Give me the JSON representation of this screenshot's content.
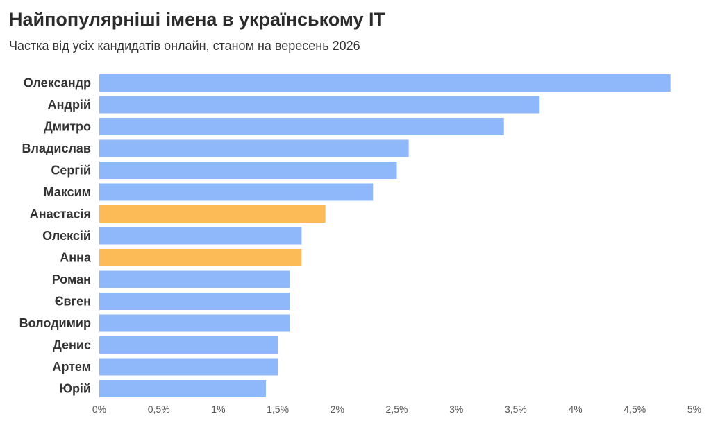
{
  "chart_data": {
    "type": "bar",
    "orientation": "horizontal",
    "title": "Найпопулярніші імена в українському IT",
    "subtitle": "Частка від усіх кандидатів онлайн, станом на вересень 2026",
    "xlabel": "",
    "ylabel": "",
    "categories": [
      "Олександр",
      "Андрій",
      "Дмитро",
      "Владислав",
      "Сергій",
      "Максим",
      "Анастасія",
      "Олексій",
      "Анна",
      "Роман",
      "Євген",
      "Володимир",
      "Денис",
      "Артем",
      "Юрій"
    ],
    "values": [
      4.8,
      3.7,
      3.4,
      2.6,
      2.5,
      2.3,
      1.9,
      1.7,
      1.7,
      1.6,
      1.6,
      1.6,
      1.5,
      1.5,
      1.4
    ],
    "highlight": [
      false,
      false,
      false,
      false,
      false,
      false,
      true,
      false,
      true,
      false,
      false,
      false,
      false,
      false,
      false
    ],
    "xlim": [
      0,
      5
    ],
    "ticks": [
      0,
      0.5,
      1,
      1.5,
      2,
      2.5,
      3,
      3.5,
      4,
      4.5,
      5
    ],
    "tick_labels": [
      "0%",
      "0,5%",
      "1%",
      "1,5%",
      "2%",
      "2,5%",
      "3%",
      "3,5%",
      "4%",
      "4,5%",
      "5%"
    ],
    "grid": false,
    "colors": {
      "default": "#8fb8fb",
      "highlight": "#fdbb58",
      "background": "#ffffff"
    }
  }
}
